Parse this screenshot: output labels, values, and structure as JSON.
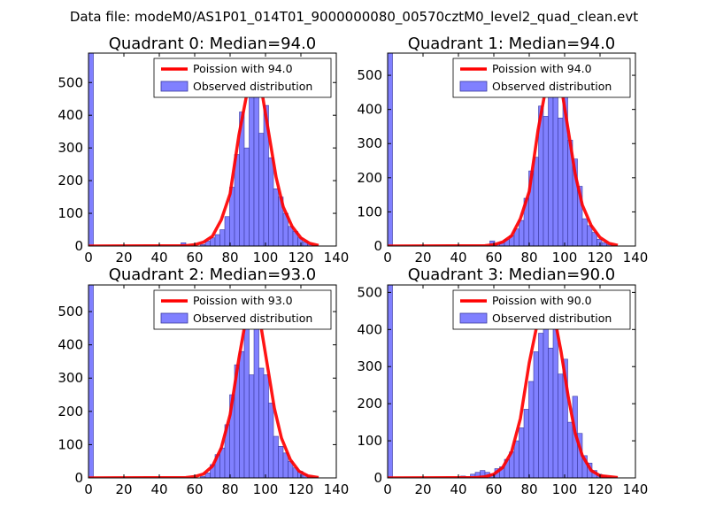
{
  "figure": {
    "suptitle": "Data file: modeM0/AS1P01_014T01_9000000080_00570cztM0_level2_quad_clean.evt"
  },
  "colors": {
    "hist_fill": "#8080ff",
    "hist_edge": "#3a3aa0",
    "fit_line": "#ff0000",
    "axes": "#000000",
    "background": "#ffffff"
  },
  "chart_data": [
    {
      "type": "bar",
      "title": "Quadrant 0: Median=94.0",
      "xlim": [
        0,
        140
      ],
      "ylim": [
        0,
        590
      ],
      "xticks": [
        0,
        20,
        40,
        60,
        80,
        100,
        120,
        140
      ],
      "xtick_labels": [
        "0",
        "20",
        "40",
        "60",
        "80",
        "100",
        "120",
        "140"
      ],
      "yticks": [
        0,
        100,
        200,
        300,
        400,
        500
      ],
      "ytick_labels": [
        "0",
        "100",
        "200",
        "300",
        "400",
        "500"
      ],
      "legend": [
        "Poission with 94.0",
        "Observed distribution"
      ],
      "legend_loc": "upper-right",
      "hist": {
        "name": "Observed distribution",
        "bin_width": 2.75,
        "edges": [
          0,
          52.25,
          55,
          63.25,
          66,
          68.75,
          71.5,
          74.25,
          77,
          79.75,
          82.5,
          85.25,
          88,
          90.75,
          93.5,
          96.25,
          99,
          101.75,
          104.5,
          107.25,
          110,
          112.75,
          115.5,
          118.25,
          121,
          123.75,
          126.5,
          129.25
        ],
        "counts": [
          590,
          10,
          0,
          5,
          15,
          25,
          35,
          50,
          90,
          180,
          280,
          410,
          300,
          550,
          470,
          345,
          430,
          270,
          175,
          150,
          100,
          60,
          45,
          25,
          12,
          5,
          2
        ]
      },
      "fit": {
        "name": "Poission with 94.0",
        "x": [
          0,
          55,
          60,
          65,
          70,
          75,
          80,
          85,
          90,
          94,
          98,
          102,
          106,
          110,
          115,
          120,
          125,
          130
        ],
        "y": [
          0,
          1,
          4,
          12,
          30,
          80,
          160,
          340,
          480,
          530,
          470,
          340,
          210,
          120,
          60,
          25,
          8,
          2
        ]
      }
    },
    {
      "type": "bar",
      "title": "Quadrant 1: Median=94.0",
      "xlim": [
        0,
        140
      ],
      "ylim": [
        0,
        565
      ],
      "xticks": [
        0,
        20,
        40,
        60,
        80,
        100,
        120,
        140
      ],
      "xtick_labels": [
        "0",
        "20",
        "40",
        "60",
        "80",
        "100",
        "120",
        "140"
      ],
      "yticks": [
        0,
        100,
        200,
        300,
        400,
        500
      ],
      "ytick_labels": [
        "0",
        "100",
        "200",
        "300",
        "400",
        "500"
      ],
      "legend": [
        "Poission with 94.0",
        "Observed distribution"
      ],
      "legend_loc": "upper-right",
      "hist": {
        "name": "Observed distribution",
        "bin_width": 2.75,
        "edges": [
          0,
          57.75,
          60.5,
          63.25,
          66,
          68.75,
          71.5,
          74.25,
          77,
          79.75,
          82.5,
          85.25,
          88,
          90.75,
          93.5,
          96.25,
          99,
          101.75,
          104.5,
          107.25,
          110,
          112.75,
          115.5,
          118.25,
          121,
          123.75,
          126.5,
          129.25
        ],
        "counts": [
          565,
          15,
          5,
          10,
          20,
          30,
          50,
          75,
          140,
          220,
          260,
          410,
          380,
          460,
          545,
          375,
          490,
          310,
          255,
          175,
          80,
          60,
          40,
          20,
          10,
          4,
          1
        ]
      },
      "fit": {
        "name": "Poission with 94.0",
        "x": [
          0,
          55,
          60,
          65,
          70,
          75,
          80,
          85,
          90,
          94,
          98,
          102,
          106,
          110,
          115,
          120,
          125,
          130
        ],
        "y": [
          0,
          1,
          4,
          12,
          30,
          80,
          160,
          340,
          480,
          530,
          470,
          340,
          210,
          120,
          60,
          25,
          8,
          2
        ]
      }
    },
    {
      "type": "bar",
      "title": "Quadrant 2: Median=93.0",
      "xlim": [
        0,
        140
      ],
      "ylim": [
        0,
        580
      ],
      "xticks": [
        0,
        20,
        40,
        60,
        80,
        100,
        120,
        140
      ],
      "xtick_labels": [
        "0",
        "20",
        "40",
        "60",
        "80",
        "100",
        "120",
        "140"
      ],
      "yticks": [
        0,
        100,
        200,
        300,
        400,
        500
      ],
      "ytick_labels": [
        "0",
        "100",
        "200",
        "300",
        "400",
        "500"
      ],
      "legend": [
        "Poission with 93.0",
        "Observed distribution"
      ],
      "legend_loc": "upper-right",
      "hist": {
        "name": "Observed distribution",
        "bin_width": 2.75,
        "edges": [
          0,
          63.25,
          66,
          68.75,
          71.5,
          74.25,
          77,
          79.75,
          82.5,
          85.25,
          88,
          90.75,
          93.5,
          96.25,
          99,
          101.75,
          104.5,
          107.25,
          110,
          112.75,
          115.5,
          118.25,
          121,
          123.75,
          126.5,
          129.25
        ],
        "counts": [
          580,
          5,
          15,
          40,
          70,
          90,
          160,
          250,
          340,
          380,
          540,
          310,
          480,
          330,
          310,
          225,
          125,
          95,
          75,
          50,
          30,
          20,
          10,
          5,
          2
        ]
      },
      "fit": {
        "name": "Poission with 93.0",
        "x": [
          0,
          55,
          60,
          65,
          70,
          75,
          80,
          85,
          89,
          93,
          97,
          101,
          105,
          109,
          114,
          119,
          124,
          130
        ],
        "y": [
          0,
          1,
          4,
          12,
          35,
          90,
          190,
          360,
          480,
          530,
          470,
          340,
          210,
          120,
          55,
          20,
          6,
          1
        ]
      }
    },
    {
      "type": "bar",
      "title": "Quadrant 3: Median=90.0",
      "xlim": [
        0,
        140
      ],
      "ylim": [
        0,
        520
      ],
      "xticks": [
        0,
        20,
        40,
        60,
        80,
        100,
        120,
        140
      ],
      "xtick_labels": [
        "0",
        "20",
        "40",
        "60",
        "80",
        "100",
        "120",
        "140"
      ],
      "yticks": [
        0,
        100,
        200,
        300,
        400,
        500
      ],
      "ytick_labels": [
        "0",
        "100",
        "200",
        "300",
        "400",
        "500"
      ],
      "legend": [
        "Poission with 90.0",
        "Observed distribution"
      ],
      "legend_loc": "upper-right",
      "hist": {
        "name": "Observed distribution",
        "bin_width": 2.75,
        "edges": [
          0,
          41.25,
          44,
          46.75,
          49.5,
          52.25,
          55,
          57.75,
          60.5,
          63.25,
          66,
          68.75,
          71.5,
          74.25,
          77,
          79.75,
          82.5,
          85.25,
          88,
          90.75,
          93.5,
          96.25,
          99,
          101.75,
          104.5,
          107.25,
          110,
          112.75,
          115.5,
          118.25,
          121,
          123.75,
          126.5
        ],
        "counts": [
          520,
          5,
          3,
          10,
          15,
          20,
          15,
          10,
          25,
          30,
          50,
          70,
          100,
          135,
          185,
          260,
          340,
          390,
          470,
          350,
          490,
          280,
          320,
          150,
          220,
          120,
          60,
          40,
          20,
          10,
          5,
          2,
          1
        ]
      },
      "fit": {
        "name": "Poission with 90.0",
        "x": [
          0,
          50,
          55,
          60,
          65,
          70,
          75,
          80,
          86,
          90,
          94,
          98,
          102,
          106,
          110,
          115,
          120,
          130
        ],
        "y": [
          0,
          1,
          3,
          10,
          28,
          70,
          160,
          310,
          450,
          490,
          440,
          340,
          220,
          120,
          60,
          20,
          6,
          1
        ]
      }
    }
  ]
}
